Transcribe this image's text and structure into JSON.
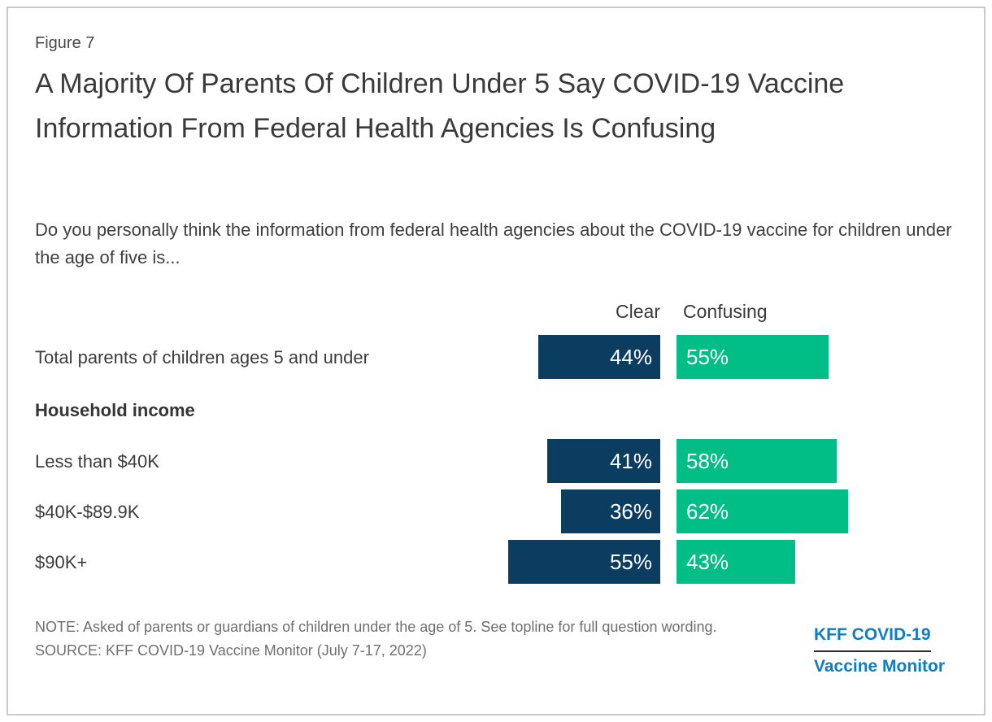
{
  "figure_label": "Figure 7",
  "title": "A Majority Of Parents Of Children Under 5 Say COVID-19 Vaccine Information From Federal Health Agencies Is Confusing",
  "subtitle": "Do you personally think the information from federal health agencies about the COVID-19 vaccine for children under the age of five is...",
  "chart_data": {
    "type": "bar",
    "orientation": "horizontal",
    "column_headers": [
      "Clear",
      "Confusing"
    ],
    "categories": [
      "Total parents of children ages 5 and under",
      "Less than $40K",
      "$40K-$89.9K",
      "$90K+"
    ],
    "series": [
      {
        "name": "Clear",
        "color": "#0B3D61",
        "values": [
          44,
          41,
          36,
          55
        ]
      },
      {
        "name": "Confusing",
        "color": "#00BE86",
        "values": [
          55,
          58,
          62,
          43
        ]
      }
    ],
    "section_headers": [
      {
        "label": "Household income",
        "before_category_index": 1
      }
    ],
    "value_suffix": "%",
    "xlim": [
      0,
      65
    ],
    "legend_position": "top",
    "grid": false
  },
  "footer": {
    "note": "NOTE: Asked of parents or guardians of children under the age of 5. See topline for full question wording.",
    "source": "SOURCE: KFF COVID-19 Vaccine Monitor (July 7-17, 2022)"
  },
  "logo": {
    "line1": "KFF COVID-19",
    "line2": "Vaccine Monitor"
  }
}
